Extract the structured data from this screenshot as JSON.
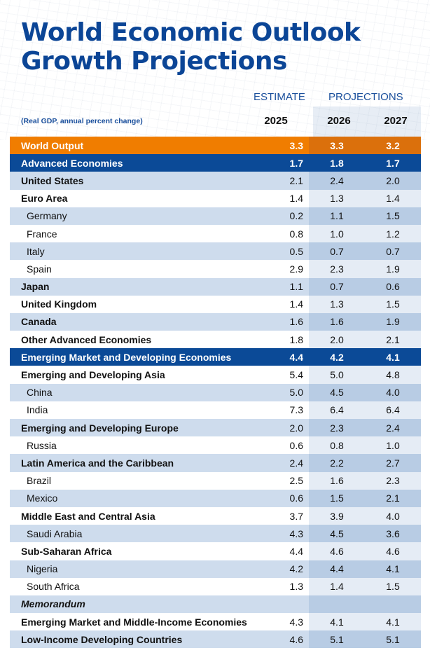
{
  "title_line1": "World Economic Outlook",
  "title_line2": "Growth Projections",
  "header": {
    "estimate": "ESTIMATE",
    "projections": "PROJECTIONS",
    "subtitle": "(Real GDP, annual percent change)",
    "years": [
      "2025",
      "2026",
      "2027"
    ]
  },
  "colors": {
    "title": "#0b4596",
    "orange": "#f07d00",
    "blue": "#0b4a97",
    "light_row": "#cedced"
  },
  "rows": [
    {
      "label": "World Output",
      "values": [
        "3.3",
        "3.3",
        "3.2"
      ],
      "style": "orange"
    },
    {
      "label": "Advanced Economies",
      "values": [
        "1.7",
        "1.8",
        "1.7"
      ],
      "style": "blue"
    },
    {
      "label": "United States",
      "values": [
        "2.1",
        "2.4",
        "2.0"
      ],
      "style": "bold"
    },
    {
      "label": "Euro Area",
      "values": [
        "1.4",
        "1.3",
        "1.4"
      ],
      "style": "bold"
    },
    {
      "label": "Germany",
      "values": [
        "0.2",
        "1.1",
        "1.5"
      ],
      "style": "indent"
    },
    {
      "label": "France",
      "values": [
        "0.8",
        "1.0",
        "1.2"
      ],
      "style": "indent"
    },
    {
      "label": "Italy",
      "values": [
        "0.5",
        "0.7",
        "0.7"
      ],
      "style": "indent"
    },
    {
      "label": "Spain",
      "values": [
        "2.9",
        "2.3",
        "1.9"
      ],
      "style": "indent"
    },
    {
      "label": "Japan",
      "values": [
        "1.1",
        "0.7",
        "0.6"
      ],
      "style": "bold"
    },
    {
      "label": "United Kingdom",
      "values": [
        "1.4",
        "1.3",
        "1.5"
      ],
      "style": "bold"
    },
    {
      "label": "Canada",
      "values": [
        "1.6",
        "1.6",
        "1.9"
      ],
      "style": "bold"
    },
    {
      "label": "Other Advanced Economies",
      "values": [
        "1.8",
        "2.0",
        "2.1"
      ],
      "style": "bold"
    },
    {
      "label": "Emerging Market and Developing Economies",
      "values": [
        "4.4",
        "4.2",
        "4.1"
      ],
      "style": "blue"
    },
    {
      "label": "Emerging and Developing Asia",
      "values": [
        "5.4",
        "5.0",
        "4.8"
      ],
      "style": "bold"
    },
    {
      "label": "China",
      "values": [
        "5.0",
        "4.5",
        "4.0"
      ],
      "style": "indent"
    },
    {
      "label": "India",
      "values": [
        "7.3",
        "6.4",
        "6.4"
      ],
      "style": "indent"
    },
    {
      "label": "Emerging and Developing Europe",
      "values": [
        "2.0",
        "2.3",
        "2.4"
      ],
      "style": "bold"
    },
    {
      "label": "Russia",
      "values": [
        "0.6",
        "0.8",
        "1.0"
      ],
      "style": "indent"
    },
    {
      "label": "Latin America and the Caribbean",
      "values": [
        "2.4",
        "2.2",
        "2.7"
      ],
      "style": "bold"
    },
    {
      "label": "Brazil",
      "values": [
        "2.5",
        "1.6",
        "2.3"
      ],
      "style": "indent"
    },
    {
      "label": "Mexico",
      "values": [
        "0.6",
        "1.5",
        "2.1"
      ],
      "style": "indent"
    },
    {
      "label": "Middle East and Central Asia",
      "values": [
        "3.7",
        "3.9",
        "4.0"
      ],
      "style": "bold"
    },
    {
      "label": "Saudi Arabia",
      "values": [
        "4.3",
        "4.5",
        "3.6"
      ],
      "style": "indent"
    },
    {
      "label": "Sub-Saharan Africa",
      "values": [
        "4.4",
        "4.6",
        "4.6"
      ],
      "style": "bold"
    },
    {
      "label": "Nigeria",
      "values": [
        "4.2",
        "4.4",
        "4.1"
      ],
      "style": "indent"
    },
    {
      "label": "South Africa",
      "values": [
        "1.3",
        "1.4",
        "1.5"
      ],
      "style": "indent"
    },
    {
      "label": "Memorandum",
      "values": [
        "",
        "",
        ""
      ],
      "style": "memo"
    },
    {
      "label": "Emerging Market and Middle-Income Economies",
      "values": [
        "4.3",
        "4.1",
        "4.1"
      ],
      "style": "bold"
    },
    {
      "label": "Low-Income Developing Countries",
      "values": [
        "4.6",
        "5.1",
        "5.1"
      ],
      "style": "bold"
    }
  ]
}
